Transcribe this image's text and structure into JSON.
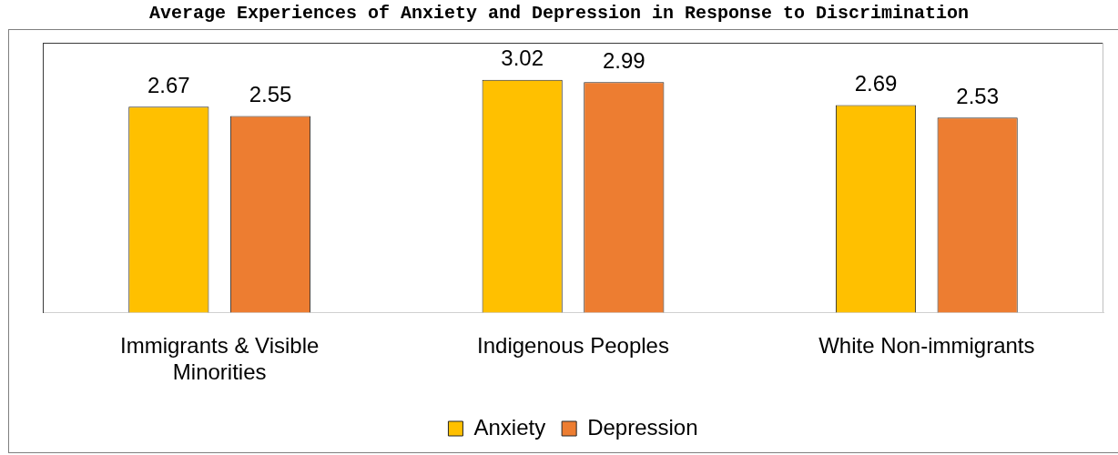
{
  "chart_data": {
    "type": "bar",
    "title": "Average Experiences of Anxiety and Depression in Response to Discrimination",
    "categories": [
      "Immigrants & Visible Minorities",
      "Indigenous Peoples",
      "White Non-immigrants"
    ],
    "series": [
      {
        "name": "Anxiety",
        "color": "#ffc000",
        "values": [
          2.67,
          3.02,
          2.69
        ]
      },
      {
        "name": "Depression",
        "color": "#ed7d31",
        "values": [
          2.55,
          2.99,
          2.53
        ]
      }
    ],
    "data_labels": true,
    "legend": "bottom",
    "grid": false,
    "tick_labels": "x"
  }
}
